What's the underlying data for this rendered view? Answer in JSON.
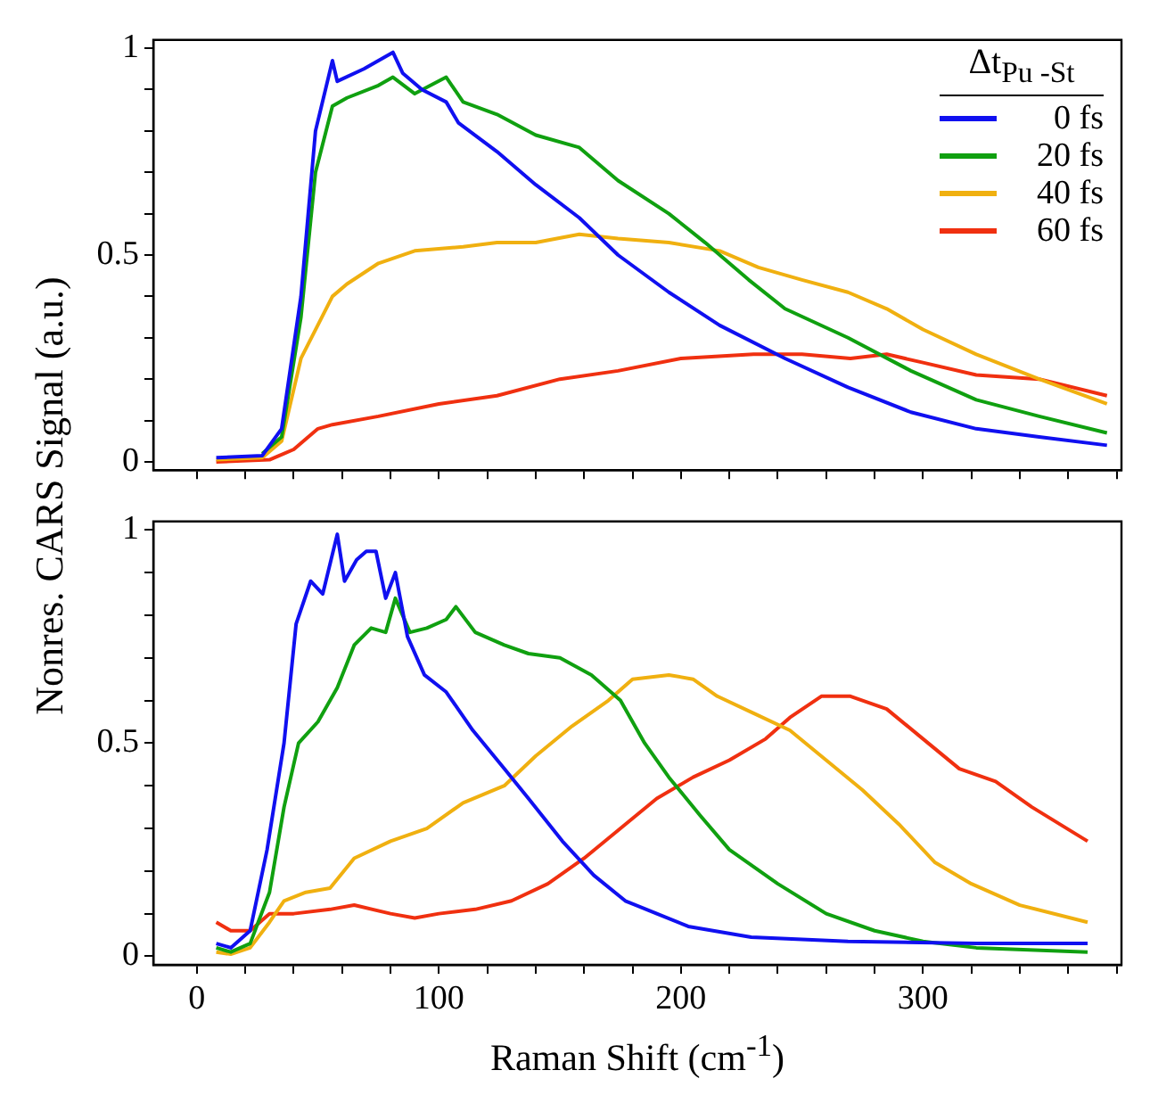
{
  "chart_data": [
    {
      "type": "line",
      "ylabel": "Nonres. CARS Signal (a.u.)",
      "legend_title": "Δt$_{Pu -St}$",
      "legend": "top right",
      "tick_labels": "y",
      "xlim": [
        -18,
        382
      ],
      "ylim": [
        -0.02,
        1.02
      ],
      "xticks": [
        {
          "value": 0,
          "label": null
        },
        {
          "value": 20,
          "label": null
        },
        {
          "value": 40,
          "label": null
        },
        {
          "value": 60,
          "label": null
        },
        {
          "value": 80,
          "label": null
        },
        {
          "value": 100,
          "label": null
        },
        {
          "value": 120,
          "label": null
        },
        {
          "value": 140,
          "label": null
        },
        {
          "value": 160,
          "label": null
        },
        {
          "value": 180,
          "label": null
        },
        {
          "value": 200,
          "label": null
        },
        {
          "value": 220,
          "label": null
        },
        {
          "value": 240,
          "label": null
        },
        {
          "value": 260,
          "label": null
        },
        {
          "value": 280,
          "label": null
        },
        {
          "value": 300,
          "label": null
        },
        {
          "value": 320,
          "label": null
        },
        {
          "value": 340,
          "label": null
        },
        {
          "value": 360,
          "label": null
        },
        {
          "value": 380,
          "label": null
        }
      ],
      "yticks": [
        0,
        {
          "value": 0.1,
          "label": null
        },
        {
          "value": 0.2,
          "label": null
        },
        {
          "value": 0.3,
          "label": null
        },
        {
          "value": 0.4,
          "label": null
        },
        0.5,
        {
          "value": 0.6,
          "label": null
        },
        {
          "value": 0.7,
          "label": null
        },
        {
          "value": 0.8,
          "label": null
        },
        {
          "value": 0.9,
          "label": null
        },
        1
      ],
      "series": [
        {
          "name": "0 fs",
          "color": "#1010f0",
          "x": [
            8,
            27,
            35,
            43,
            49,
            56,
            58,
            69,
            81,
            85,
            93,
            103,
            108,
            124,
            140,
            158,
            174,
            195,
            216,
            243,
            269,
            295,
            322,
            348,
            376
          ],
          "values": [
            0.01,
            0.015,
            0.08,
            0.4,
            0.8,
            0.97,
            0.92,
            0.95,
            0.99,
            0.94,
            0.9,
            0.87,
            0.82,
            0.75,
            0.67,
            0.59,
            0.5,
            0.41,
            0.33,
            0.25,
            0.18,
            0.12,
            0.08,
            0.06,
            0.04
          ]
        },
        {
          "name": "20 fs",
          "color": "#10a010",
          "x": [
            27,
            35,
            43,
            49,
            56,
            62,
            75,
            81,
            90,
            103,
            110,
            124,
            140,
            158,
            174,
            195,
            210,
            228,
            243,
            269,
            295,
            322,
            348,
            376
          ],
          "values": [
            0.02,
            0.06,
            0.35,
            0.7,
            0.86,
            0.88,
            0.91,
            0.93,
            0.89,
            0.93,
            0.87,
            0.84,
            0.79,
            0.76,
            0.68,
            0.6,
            0.53,
            0.44,
            0.37,
            0.3,
            0.22,
            0.15,
            0.11,
            0.07
          ]
        },
        {
          "name": "40 fs",
          "color": "#f0b010",
          "x": [
            8,
            27,
            35,
            43,
            56,
            62,
            75,
            90,
            110,
            124,
            140,
            158,
            174,
            195,
            216,
            232,
            250,
            269,
            285,
            300,
            322,
            348,
            376
          ],
          "values": [
            0.005,
            0.01,
            0.05,
            0.25,
            0.4,
            0.43,
            0.48,
            0.51,
            0.52,
            0.53,
            0.53,
            0.55,
            0.54,
            0.53,
            0.51,
            0.47,
            0.44,
            0.41,
            0.37,
            0.32,
            0.26,
            0.2,
            0.14
          ]
        },
        {
          "name": "60 fs",
          "color": "#f03010",
          "x": [
            8,
            30,
            40,
            50,
            56,
            75,
            100,
            124,
            150,
            174,
            200,
            230,
            250,
            270,
            285,
            300,
            322,
            348,
            376
          ],
          "values": [
            0,
            0.005,
            0.03,
            0.08,
            0.09,
            0.11,
            0.14,
            0.16,
            0.2,
            0.22,
            0.25,
            0.26,
            0.26,
            0.25,
            0.26,
            0.24,
            0.21,
            0.2,
            0.16
          ]
        }
      ]
    },
    {
      "type": "line",
      "xlabel": "Raman Shift (cm$^{-1}$)",
      "xlim": [
        -18,
        382
      ],
      "ylim": [
        -0.02,
        1.02
      ],
      "xticks": [
        0,
        {
          "value": 20,
          "label": null
        },
        {
          "value": 40,
          "label": null
        },
        {
          "value": 60,
          "label": null
        },
        {
          "value": 80,
          "label": null
        },
        100,
        {
          "value": 120,
          "label": null
        },
        {
          "value": 140,
          "label": null
        },
        {
          "value": 160,
          "label": null
        },
        {
          "value": 180,
          "label": null
        },
        200,
        {
          "value": 220,
          "label": null
        },
        {
          "value": 240,
          "label": null
        },
        {
          "value": 260,
          "label": null
        },
        {
          "value": 280,
          "label": null
        },
        300,
        {
          "value": 320,
          "label": null
        },
        {
          "value": 340,
          "label": null
        },
        {
          "value": 360,
          "label": null
        },
        {
          "value": 380,
          "label": null
        }
      ],
      "yticks": [
        0,
        {
          "value": 0.1,
          "label": null
        },
        {
          "value": 0.2,
          "label": null
        },
        {
          "value": 0.3,
          "label": null
        },
        {
          "value": 0.4,
          "label": null
        },
        0.5,
        {
          "value": 0.6,
          "label": null
        },
        {
          "value": 0.7,
          "label": null
        },
        {
          "value": 0.8,
          "label": null
        },
        {
          "value": 0.9,
          "label": null
        },
        1
      ],
      "series": [
        {
          "color": "#1010f0",
          "x": [
            8,
            14,
            22,
            29,
            36,
            41,
            47,
            52,
            58,
            61,
            66,
            70,
            74,
            78,
            82,
            87,
            94,
            103,
            114,
            127,
            137,
            151,
            164,
            177,
            190,
            203,
            229,
            269,
            322,
            368
          ],
          "values": [
            0.03,
            0.02,
            0.06,
            0.25,
            0.5,
            0.78,
            0.88,
            0.85,
            0.99,
            0.88,
            0.93,
            0.95,
            0.95,
            0.84,
            0.9,
            0.75,
            0.66,
            0.62,
            0.53,
            0.44,
            0.37,
            0.27,
            0.19,
            0.13,
            0.1,
            0.07,
            0.045,
            0.035,
            0.03,
            0.03
          ]
        },
        {
          "color": "#10a010",
          "x": [
            8,
            14,
            22,
            30,
            36,
            42,
            50,
            58,
            65,
            72,
            78,
            82,
            88,
            95,
            103,
            107,
            115,
            127,
            137,
            150,
            163,
            175,
            185,
            195,
            208,
            220,
            240,
            260,
            280,
            300,
            322,
            368
          ],
          "values": [
            0.02,
            0.01,
            0.03,
            0.15,
            0.35,
            0.5,
            0.55,
            0.63,
            0.73,
            0.77,
            0.76,
            0.84,
            0.76,
            0.77,
            0.79,
            0.82,
            0.76,
            0.73,
            0.71,
            0.7,
            0.66,
            0.6,
            0.5,
            0.42,
            0.33,
            0.25,
            0.17,
            0.1,
            0.06,
            0.035,
            0.02,
            0.01
          ]
        },
        {
          "color": "#f0b010",
          "x": [
            8,
            14,
            22,
            30,
            36,
            45,
            55,
            65,
            80,
            95,
            110,
            127,
            140,
            155,
            170,
            180,
            195,
            205,
            215,
            230,
            245,
            260,
            275,
            290,
            305,
            320,
            340,
            368
          ],
          "values": [
            0.01,
            0.005,
            0.02,
            0.08,
            0.13,
            0.15,
            0.16,
            0.23,
            0.27,
            0.3,
            0.36,
            0.4,
            0.47,
            0.54,
            0.6,
            0.65,
            0.66,
            0.65,
            0.61,
            0.57,
            0.53,
            0.46,
            0.39,
            0.31,
            0.22,
            0.17,
            0.12,
            0.08
          ]
        },
        {
          "color": "#f03010",
          "x": [
            8,
            14,
            22,
            30,
            40,
            55,
            65,
            80,
            90,
            100,
            115,
            130,
            145,
            160,
            175,
            190,
            205,
            220,
            235,
            245,
            258,
            270,
            285,
            300,
            315,
            330,
            345,
            368
          ],
          "values": [
            0.08,
            0.06,
            0.06,
            0.1,
            0.1,
            0.11,
            0.12,
            0.1,
            0.09,
            0.1,
            0.11,
            0.13,
            0.17,
            0.23,
            0.3,
            0.37,
            0.42,
            0.46,
            0.51,
            0.56,
            0.61,
            0.61,
            0.58,
            0.51,
            0.44,
            0.41,
            0.35,
            0.27
          ]
        }
      ]
    }
  ]
}
